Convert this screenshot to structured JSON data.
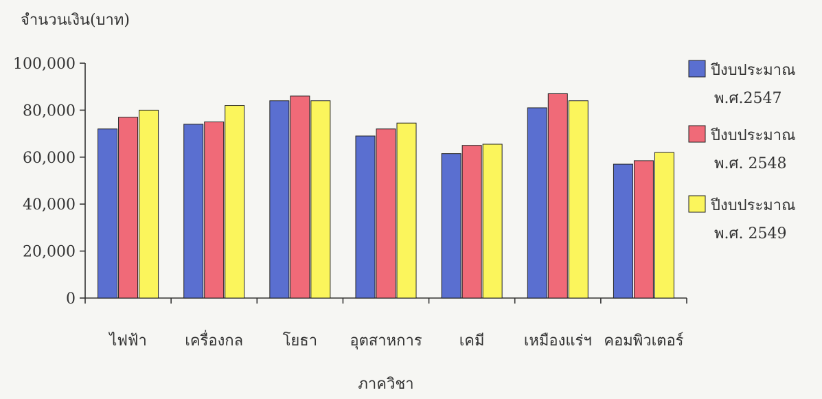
{
  "chart_data": {
    "type": "bar",
    "ylabel": "จำนวนเงิน(บาท)",
    "xlabel": "ภาควิชา",
    "ylim": [
      0,
      100000
    ],
    "yticks": [
      0,
      20000,
      40000,
      60000,
      80000,
      100000
    ],
    "ytick_labels": [
      "0",
      "20,000",
      "40,000",
      "60,000",
      "80,000",
      "100,000"
    ],
    "categories": [
      "ไฟฟ้า",
      "เครื่องกล",
      "โยธา",
      "อุตสาหการ",
      "เคมี",
      "เหมืองแร่ฯ",
      "คอมพิวเตอร์"
    ],
    "series": [
      {
        "name": "ปีงบประมาณ พ.ศ.2547",
        "legend_lines": [
          "ปีงบประมาณ",
          "พ.ศ.2547"
        ],
        "color": "#5a6fd0",
        "values": [
          72000,
          74000,
          84000,
          69000,
          61500,
          81000,
          57000
        ]
      },
      {
        "name": "ปีงบประมาณ พ.ศ. 2548",
        "legend_lines": [
          "ปีงบประมาณ",
          "พ.ศ. 2548"
        ],
        "color": "#f06a78",
        "values": [
          77000,
          75000,
          86000,
          72000,
          65000,
          87000,
          58500
        ]
      },
      {
        "name": "ปีงบประมาณ พ.ศ. 2549",
        "legend_lines": [
          "ปีงบประมาณ",
          "พ.ศ. 2549"
        ],
        "color": "#fbf55c",
        "values": [
          80000,
          82000,
          84000,
          74500,
          65500,
          84000,
          62000
        ]
      }
    ],
    "legend_position": "right",
    "grid": false
  }
}
